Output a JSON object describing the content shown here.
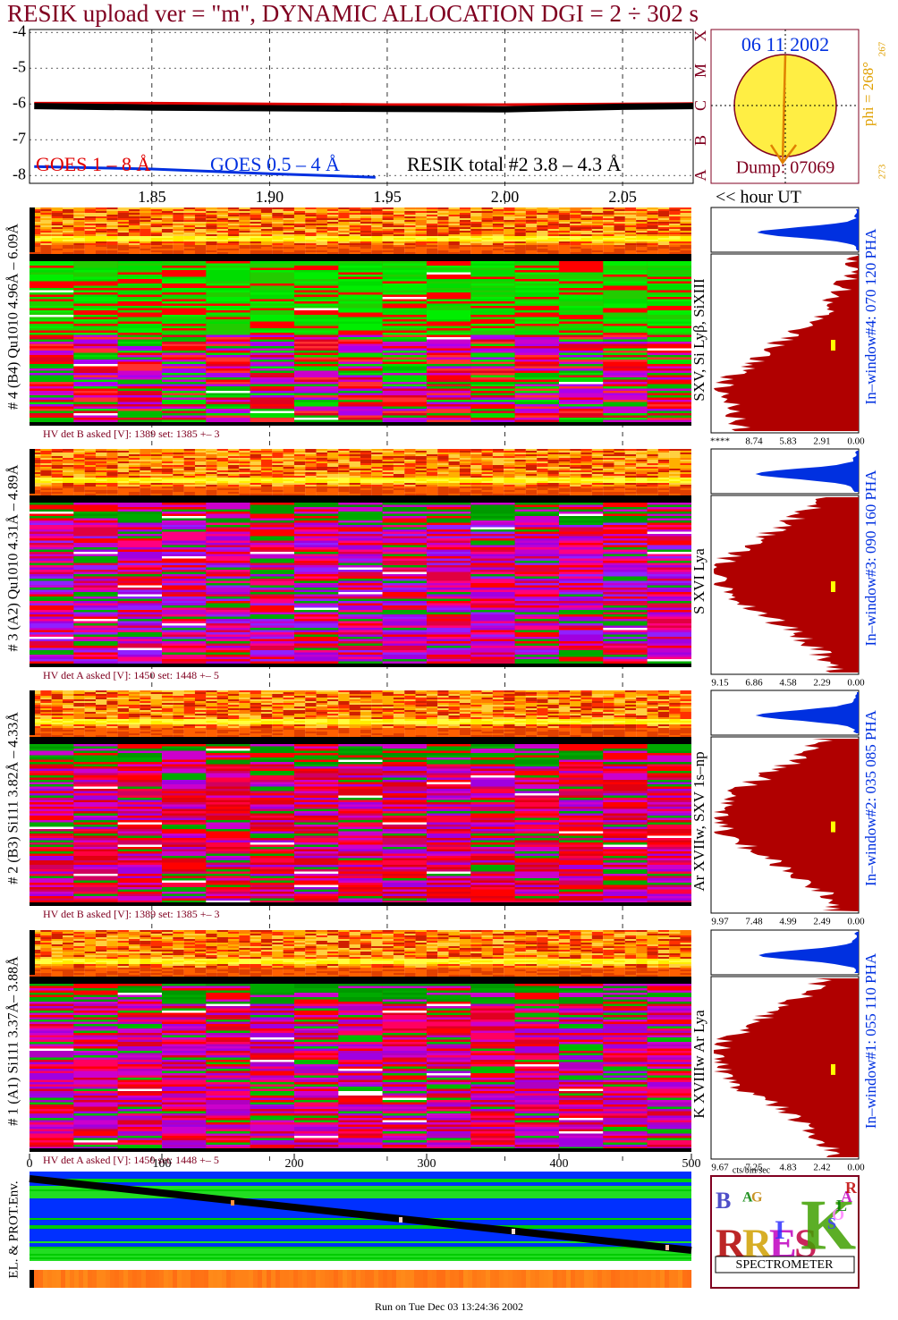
{
  "title": "RESIK upload ver = \"m\", DYNAMIC ALLOCATION  DGI =   2 ÷ 302 s",
  "chart_data": {
    "type": "line",
    "xlim": [
      1.798,
      2.08
    ],
    "xticks": [
      {
        "value": 1.85,
        "label": "1.85"
      },
      {
        "value": 1.9,
        "label": "1.90"
      },
      {
        "value": 1.95,
        "label": "1.95"
      },
      {
        "value": 2.0,
        "label": "2.00"
      },
      {
        "value": 2.05,
        "label": "2.05"
      }
    ],
    "x_label": "<< hour UT",
    "ylim": [
      -8.22,
      -3.92
    ],
    "yticks": [
      -4,
      -5,
      -6,
      -7,
      -8
    ],
    "grid": true,
    "series": [
      {
        "name": "GOES 1 – 8 Å",
        "color": "#e00000",
        "x": [
          1.8,
          1.85,
          1.9,
          1.95,
          2.0,
          2.05,
          2.08
        ],
        "values": [
          -5.98,
          -5.98,
          -6.0,
          -6.02,
          -6.02,
          -6.0,
          -5.99
        ]
      },
      {
        "name": "GOES 0.5 – 4 Å",
        "color": "#0030e0",
        "x": [
          1.8,
          1.85,
          1.9,
          1.945
        ],
        "values": [
          -7.75,
          -7.82,
          -7.95,
          -8.05
        ]
      },
      {
        "name": "RESIK total #2  3.8 – 4.3 Å",
        "color": "#000000",
        "x": [
          1.8,
          1.85,
          1.9,
          1.95,
          2.0,
          2.05,
          2.08
        ],
        "values": [
          -6.06,
          -6.1,
          -6.12,
          -6.14,
          -6.15,
          -6.08,
          -6.06
        ]
      }
    ]
  },
  "sun": {
    "date": "06 11 2002",
    "dump": "Dump: 07069",
    "phi": "phi = 268°",
    "phi_top": "267",
    "phi_bottom": "273",
    "classes": [
      "X",
      "M",
      "C",
      "B",
      "A"
    ]
  },
  "detectors": [
    {
      "label": "# 4 (B4) Qu1010 4.96Å – 6.09Å",
      "hv": "HV det B asked [V]:  1389 set:  1385 +–   3",
      "lines": "SXV, Si Lyβ, SiXIII",
      "hist_ticks": [
        "****",
        "8.74",
        "5.83",
        "2.91",
        "0.00"
      ],
      "window": "In–window#4:  070 120 PHA"
    },
    {
      "label": "# 3 (A2) Qu1010  4.31Å – 4.89Å",
      "hv": "HV det A asked [V]:  1450 set:  1448 +–    5",
      "lines": "S XVI Lya",
      "hist_ticks": [
        "9.15",
        "6.86",
        "4.58",
        "2.29",
        "0.00"
      ],
      "window": "In–window#3:  090 160 PHA"
    },
    {
      "label": "# 2 (B3) Si111  3.82Å – 4.33Å",
      "hv": "HV det B asked [V]:  1389 set:  1385 +–   3",
      "lines": "Ar XVIIw,  SXV 1s–np",
      "hist_ticks": [
        "9.97",
        "7.48",
        "4.99",
        "2.49",
        "0.00"
      ],
      "window": "In–window#2:  035 085 PHA"
    },
    {
      "label": "# 1 (A1) Si111  3.37Å– 3.88Å",
      "hv": "HV det A asked [V]:  1450 set:  1448 +–    5",
      "lines": "K XVIIIw  Ar Lya",
      "hist_ticks": [
        "9.67",
        "7.25",
        "4.83",
        "2.42",
        "0.00"
      ],
      "window": "In–window#1:  055 110 PHA"
    }
  ],
  "hist_unit": "cts/bin/sec",
  "time_axis": {
    "xlim": [
      0,
      500
    ],
    "xticks": [
      0,
      100,
      200,
      300,
      400,
      500
    ]
  },
  "environment_label": "EL. & PROT.Env.",
  "logo": {
    "letters": [
      "B",
      "R",
      "A",
      "G",
      "R",
      "E",
      "S",
      "I",
      "K",
      "S",
      "O",
      "L",
      "A",
      "R"
    ],
    "name": "SPECTROMETER"
  },
  "footer": "Run on Tue Dec 03 13:24:36 2002"
}
